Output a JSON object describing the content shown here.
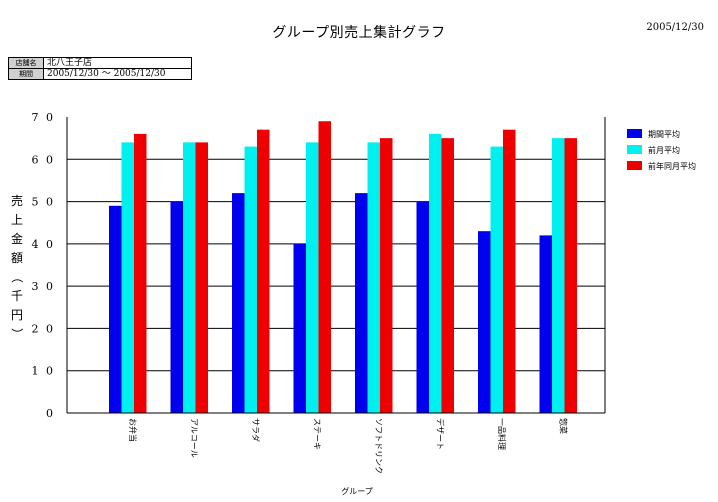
{
  "header": {
    "title": "グループ別売上集計グラフ",
    "date": "2005/12/30"
  },
  "info_table": {
    "rows": [
      {
        "label": "店舗名",
        "value": "北八王子店"
      },
      {
        "label": "期間",
        "value": "2005/12/30 ～ 2005/12/30"
      }
    ]
  },
  "chart_data": {
    "type": "bar",
    "title": "グループ別売上集計グラフ",
    "xlabel": "グループ",
    "ylabel": "売上金額（千円）",
    "ylim": [
      0,
      7
    ],
    "yticks": [
      "0",
      "1 0",
      "2 0",
      "3 0",
      "4 0",
      "5 0",
      "6 0",
      "7 0"
    ],
    "grid": true,
    "legend_position": "right",
    "categories": [
      "お弁当",
      "アルコール",
      "サラダ",
      "ステーキ",
      "ソフトドリンク",
      "デザート",
      "一品料理",
      "惣菜"
    ],
    "series": [
      {
        "name": "期間平均",
        "color": "#0000ee",
        "values": [
          4.9,
          5.0,
          5.2,
          4.0,
          5.2,
          5.0,
          4.3,
          4.2
        ]
      },
      {
        "name": "前月平均",
        "color": "#00f0f0",
        "values": [
          6.4,
          6.4,
          6.3,
          6.4,
          6.4,
          6.6,
          6.3,
          6.5
        ]
      },
      {
        "name": "前年同月平均",
        "color": "#ee0000",
        "values": [
          6.6,
          6.4,
          6.7,
          6.9,
          6.5,
          6.5,
          6.7,
          6.5
        ]
      }
    ]
  }
}
